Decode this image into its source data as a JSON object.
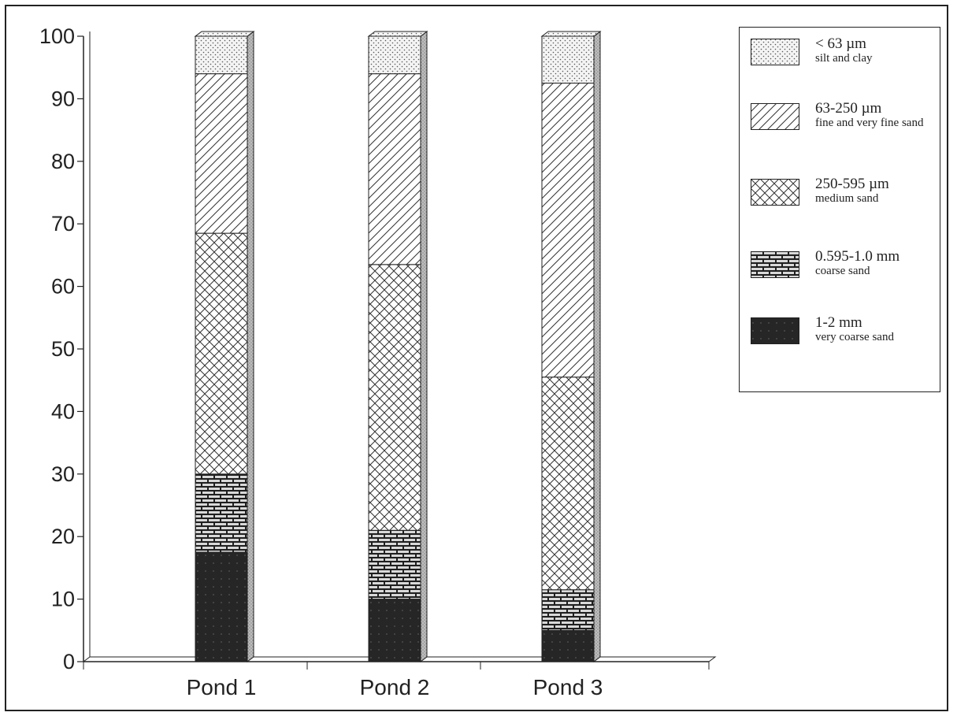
{
  "chart_data": {
    "type": "bar",
    "stacked": true,
    "three_d": true,
    "categories": [
      "Pond 1",
      "Pond 2",
      "Pond 3"
    ],
    "ylim": [
      0,
      100
    ],
    "yticks": [
      0,
      10,
      20,
      30,
      40,
      50,
      60,
      70,
      80,
      90,
      100
    ],
    "series": [
      {
        "name": "1-2 mm",
        "description": "very coarse sand",
        "pattern": "solid-dark",
        "values": [
          17.5,
          10,
          5
        ]
      },
      {
        "name": "0.595-1.0 mm",
        "description": "coarse sand",
        "pattern": "brick",
        "values": [
          12.5,
          11,
          6.5
        ]
      },
      {
        "name": "250-595 µm",
        "description": "medium sand",
        "pattern": "crosshatch",
        "values": [
          38.5,
          42.5,
          34
        ]
      },
      {
        "name": "63-250 µm",
        "description": "fine and very fine sand",
        "pattern": "diagonal",
        "values": [
          25.5,
          30.5,
          47
        ]
      },
      {
        "name": "< 63 µm",
        "description": "silt and clay",
        "pattern": "dots",
        "values": [
          6,
          6,
          7.5
        ]
      }
    ],
    "legend_position": "right",
    "grid": false
  },
  "legend_order": [
    4,
    3,
    2,
    1,
    0
  ],
  "colors": {
    "ink": "#222222",
    "dark_fill": "#262626",
    "side_fill": "#bdbdbd",
    "top_fill": "#e8e8e8"
  }
}
